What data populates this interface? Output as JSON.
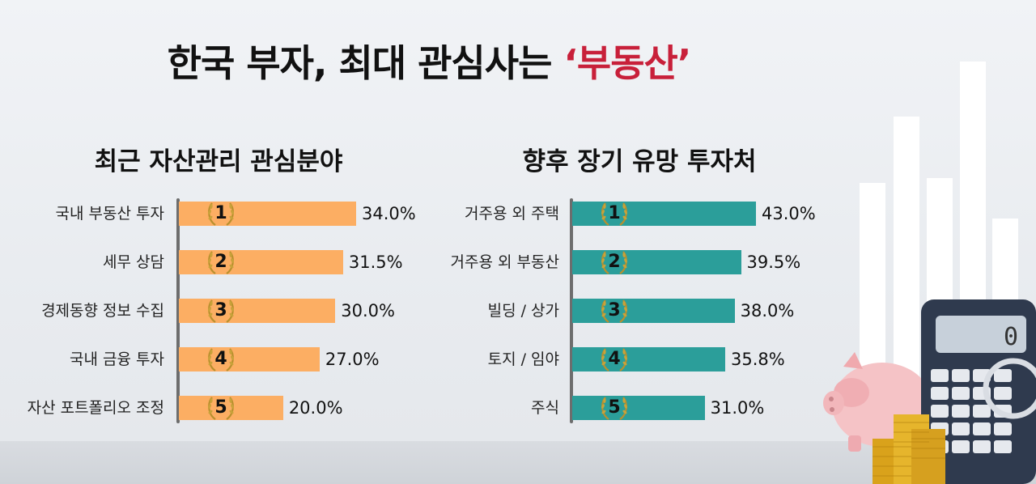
{
  "title": {
    "main": "한국 부자, 최대 관심사는 ",
    "highlight": "‘부동산’"
  },
  "colors": {
    "highlight": "#c8203a",
    "left_bar": "#fcae63",
    "right_bar": "#2b9e9a"
  },
  "calculator": {
    "display": "0"
  },
  "chart_data": [
    {
      "type": "bar",
      "orientation": "horizontal",
      "title": "최근 자산관리 관심분야",
      "categories": [
        "국내 부동산 투자",
        "세무 상담",
        "경제동향 정보 수집",
        "국내 금융 투자",
        "자산 포트폴리오 조정"
      ],
      "values": [
        34.0,
        31.5,
        30.0,
        27.0,
        20.0
      ],
      "value_labels": [
        "34.0%",
        "31.5%",
        "30.0%",
        "27.0%",
        "20.0%"
      ],
      "ranks": [
        "1",
        "2",
        "3",
        "4",
        "5"
      ],
      "xlim": [
        0,
        34.0
      ],
      "grid": false,
      "legend": "none"
    },
    {
      "type": "bar",
      "orientation": "horizontal",
      "title": "향후 장기 유망 투자처",
      "categories": [
        "거주용 외 주택",
        "거주용 외 부동산",
        "빌딩 / 상가",
        "토지 / 임야",
        "주식"
      ],
      "values": [
        43.0,
        39.5,
        38.0,
        35.8,
        31.0
      ],
      "value_labels": [
        "43.0%",
        "39.5%",
        "38.0%",
        "35.8%",
        "31.0%"
      ],
      "ranks": [
        "1",
        "2",
        "3",
        "4",
        "5"
      ],
      "xlim": [
        0,
        43.0
      ],
      "grid": false,
      "legend": "none"
    }
  ]
}
